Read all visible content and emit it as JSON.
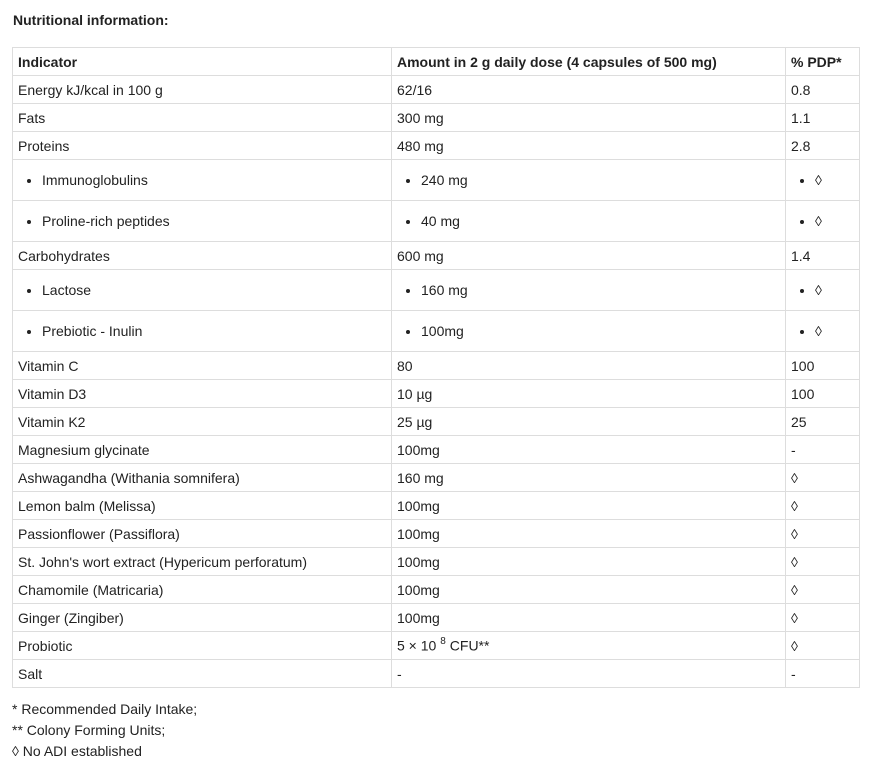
{
  "title": "Nutritional information:",
  "table": {
    "header": [
      "Indicator",
      "Amount in 2 g daily dose (4 capsules of 500 mg)",
      "% PDP*"
    ],
    "rows": [
      {
        "cells": [
          "Energy kJ/kcal in 100 g",
          "62/16",
          "0.8"
        ]
      },
      {
        "cells": [
          "Fats",
          "300 mg",
          "1.1"
        ]
      },
      {
        "cells": [
          "Proteins",
          "480 mg",
          "2.8"
        ],
        "items": [
          [
            "Immunoglobulins",
            "240 mg",
            "◊"
          ],
          [
            "Proline-rich peptides",
            "40 mg",
            "◊"
          ]
        ]
      },
      {
        "cells": [
          "Carbohydrates",
          "600 mg",
          "1.4"
        ],
        "items": [
          [
            "Lactose",
            "160 mg",
            "◊"
          ],
          [
            "Prebiotic - Inulin",
            "100mg",
            "◊"
          ]
        ]
      },
      {
        "cells": [
          "Vitamin C",
          "80",
          "100"
        ]
      },
      {
        "cells": [
          "Vitamin D3",
          "10 µg",
          "100"
        ]
      },
      {
        "cells": [
          "Vitamin K2",
          "25 µg",
          "25"
        ]
      },
      {
        "cells": [
          "Magnesium glycinate",
          "100mg",
          "-"
        ]
      },
      {
        "cells": [
          "Ashwagandha (Withania somnifera)",
          "160 mg",
          "◊"
        ]
      },
      {
        "cells": [
          "Lemon balm (Melissa)",
          "100mg",
          "◊"
        ]
      },
      {
        "cells": [
          "Passionflower (Passiflora)",
          "100mg",
          "◊"
        ]
      },
      {
        "cells": [
          "St. John's wort extract (Hypericum perforatum)",
          "100mg",
          "◊"
        ]
      },
      {
        "cells": [
          "Chamomile (Matricaria)",
          "100mg",
          "◊"
        ]
      },
      {
        "cells": [
          "Ginger (Zingiber)",
          "100mg",
          "◊"
        ]
      },
      {
        "cells": [
          "Probiotic",
          {
            "base": "5 × 10",
            "exponent": "8",
            "suffix": "CFU**"
          },
          "◊"
        ]
      },
      {
        "cells": [
          "Salt",
          "-",
          "-"
        ]
      }
    ]
  },
  "footnotes": [
    "* Recommended Daily Intake;",
    "** Colony Forming Units;",
    "◊ No ADI established"
  ]
}
